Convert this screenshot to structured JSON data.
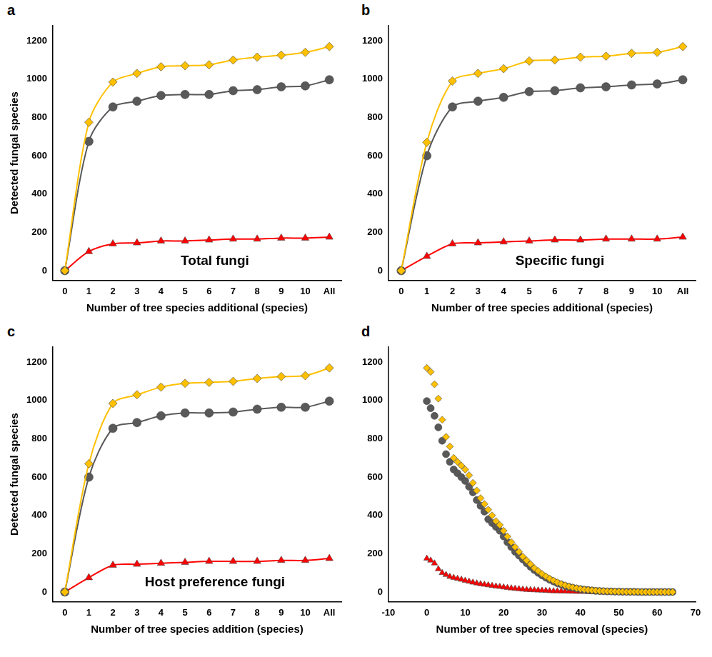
{
  "chart_data": [
    {
      "panel": "a",
      "type": "line",
      "annotation": "Total fungi",
      "x_label": "Number of tree species additional (species)",
      "y_label": "Detected fungal species",
      "categories": [
        "0",
        "1",
        "2",
        "3",
        "4",
        "5",
        "6",
        "7",
        "8",
        "9",
        "10",
        "All"
      ],
      "series": [
        {
          "color": "#ffc000",
          "marker": "diamond",
          "line_style": "solid",
          "values": [
            0,
            775,
            985,
            1030,
            1065,
            1070,
            1075,
            1100,
            1115,
            1125,
            1140,
            1170
          ]
        },
        {
          "color": "#595959",
          "marker": "circle",
          "line_style": "solid",
          "values": [
            0,
            675,
            855,
            885,
            915,
            920,
            920,
            940,
            945,
            960,
            965,
            997
          ]
        },
        {
          "color": "#ff0000",
          "marker": "triangle",
          "line_style": "solid",
          "values": [
            0,
            100,
            140,
            145,
            155,
            155,
            160,
            165,
            165,
            170,
            170,
            175
          ]
        }
      ],
      "ylim": [
        -50,
        1280
      ],
      "yticks": [
        0,
        200,
        400,
        600,
        800,
        1000,
        1200
      ],
      "grid": false
    },
    {
      "panel": "b",
      "type": "line",
      "annotation": "Specific fungi",
      "x_label": "Number of tree species additional (species)",
      "categories": [
        "0",
        "1",
        "2",
        "3",
        "4",
        "5",
        "6",
        "7",
        "8",
        "9",
        "10",
        "All"
      ],
      "series": [
        {
          "color": "#ffc000",
          "marker": "diamond",
          "line_style": "solid",
          "values": [
            0,
            670,
            990,
            1030,
            1055,
            1095,
            1100,
            1115,
            1120,
            1135,
            1140,
            1170
          ]
        },
        {
          "color": "#595959",
          "marker": "circle",
          "line_style": "solid",
          "values": [
            0,
            600,
            855,
            885,
            905,
            935,
            940,
            955,
            960,
            970,
            975,
            997
          ]
        },
        {
          "color": "#ff0000",
          "marker": "triangle",
          "line_style": "solid",
          "values": [
            0,
            75,
            140,
            145,
            150,
            155,
            160,
            160,
            165,
            165,
            165,
            175
          ]
        }
      ],
      "ylim": [
        -50,
        1280
      ],
      "yticks": [
        0,
        200,
        400,
        600,
        800,
        1000,
        1200
      ],
      "grid": false
    },
    {
      "panel": "c",
      "type": "line",
      "annotation": "Host preference fungi",
      "x_label": "Number of tree species addition (species)",
      "y_label": "Detected fungal species",
      "categories": [
        "0",
        "1",
        "2",
        "3",
        "4",
        "5",
        "6",
        "7",
        "8",
        "9",
        "10",
        "All"
      ],
      "series": [
        {
          "color": "#ffc000",
          "marker": "diamond",
          "line_style": "solid",
          "values": [
            0,
            670,
            985,
            1030,
            1070,
            1090,
            1095,
            1100,
            1115,
            1125,
            1130,
            1170
          ]
        },
        {
          "color": "#595959",
          "marker": "circle",
          "line_style": "solid",
          "values": [
            0,
            600,
            855,
            885,
            920,
            935,
            935,
            940,
            955,
            965,
            965,
            997
          ]
        },
        {
          "color": "#ff0000",
          "marker": "triangle",
          "line_style": "solid",
          "values": [
            0,
            75,
            140,
            145,
            150,
            155,
            160,
            160,
            160,
            165,
            165,
            175
          ]
        }
      ],
      "ylim": [
        -50,
        1280
      ],
      "yticks": [
        0,
        200,
        400,
        600,
        800,
        1000,
        1200
      ],
      "grid": false
    },
    {
      "panel": "d",
      "type": "scatter",
      "x_label": "Number of tree species removal (species)",
      "x": [
        0,
        1,
        2,
        3,
        4,
        5,
        6,
        7,
        8,
        9,
        10,
        11,
        12,
        13,
        14,
        15,
        16,
        17,
        18,
        19,
        20,
        21,
        22,
        23,
        24,
        25,
        26,
        27,
        28,
        29,
        30,
        31,
        32,
        33,
        34,
        35,
        36,
        37,
        38,
        39,
        40,
        41,
        42,
        43,
        44,
        45,
        46,
        47,
        48,
        49,
        50,
        51,
        52,
        53,
        54,
        55,
        56,
        57,
        58,
        59,
        60,
        61,
        62,
        63,
        64
      ],
      "series": [
        {
          "color": "#ffc000",
          "marker": "diamond",
          "line_style": "none",
          "values": [
            1170,
            1150,
            1085,
            1010,
            900,
            810,
            760,
            700,
            680,
            660,
            640,
            610,
            570,
            530,
            490,
            460,
            430,
            400,
            370,
            350,
            320,
            290,
            260,
            235,
            210,
            185,
            165,
            145,
            125,
            110,
            95,
            82,
            70,
            60,
            50,
            42,
            35,
            29,
            24,
            20,
            16,
            13,
            11,
            9,
            7,
            6,
            5,
            4,
            3,
            3,
            2,
            2,
            1,
            1,
            1,
            1,
            0,
            0,
            0,
            0,
            0,
            0,
            0,
            0,
            0
          ]
        },
        {
          "color": "#595959",
          "marker": "circle",
          "line_style": "none",
          "values": [
            997,
            960,
            920,
            860,
            790,
            720,
            680,
            640,
            620,
            600,
            580,
            550,
            520,
            480,
            450,
            420,
            380,
            360,
            340,
            320,
            290,
            260,
            235,
            210,
            190,
            170,
            150,
            132,
            115,
            100,
            87,
            75,
            64,
            55,
            46,
            39,
            32,
            27,
            22,
            18,
            15,
            12,
            10,
            8,
            6,
            5,
            4,
            3,
            3,
            2,
            2,
            1,
            1,
            1,
            1,
            0,
            0,
            0,
            0,
            0,
            0,
            0,
            0,
            0,
            0
          ]
        },
        {
          "color": "#ff0000",
          "marker": "triangle",
          "line_style": "none",
          "values": [
            175,
            165,
            150,
            120,
            100,
            90,
            80,
            75,
            70,
            65,
            60,
            55,
            50,
            46,
            42,
            39,
            36,
            33,
            30,
            28,
            25,
            22,
            20,
            18,
            16,
            14,
            12,
            11,
            10,
            9,
            8,
            7,
            6,
            5,
            5,
            4,
            4,
            3,
            3,
            2,
            2,
            2,
            1,
            1,
            1,
            1,
            1,
            1,
            1,
            1,
            1,
            0,
            0,
            0,
            0,
            0,
            0,
            0,
            0,
            0,
            0,
            0,
            0,
            0,
            0
          ]
        }
      ],
      "xlim": [
        -10,
        70
      ],
      "xticks": [
        -10,
        0,
        10,
        20,
        30,
        40,
        50,
        60,
        70
      ],
      "ylim": [
        -50,
        1280
      ],
      "yticks": [
        0,
        200,
        400,
        600,
        800,
        1000,
        1200
      ],
      "grid": false
    }
  ]
}
